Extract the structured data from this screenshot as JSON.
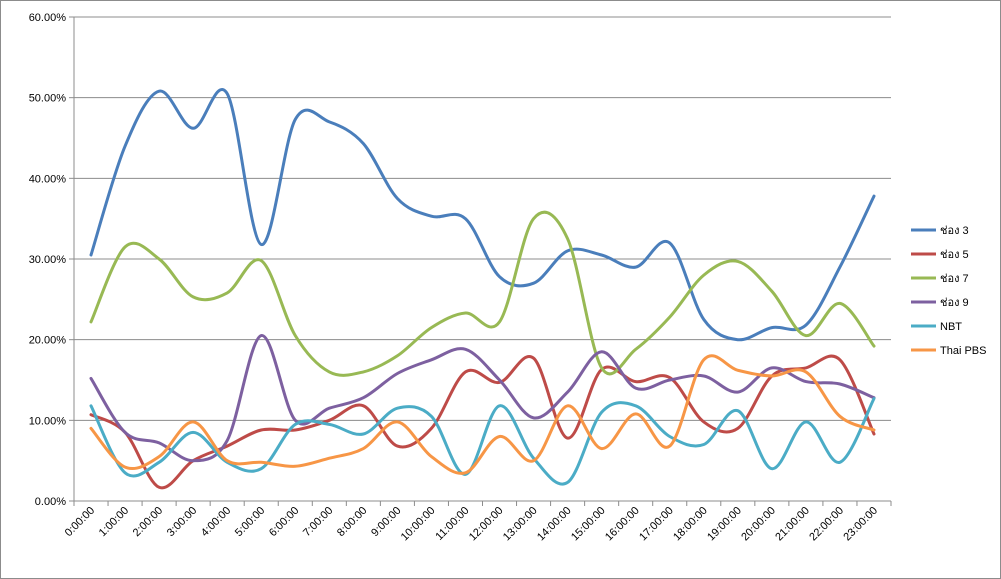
{
  "chart_data": {
    "type": "line",
    "title": "",
    "xlabel": "",
    "ylabel": "",
    "ylim": [
      0,
      60
    ],
    "y_ticks": [
      "0.00%",
      "10.00%",
      "20.00%",
      "30.00%",
      "40.00%",
      "50.00%",
      "60.00%"
    ],
    "grid": true,
    "smooth": true,
    "legend_position": "right",
    "categories": [
      "0:00:00",
      "1:00:00",
      "2:00:00",
      "3:00:00",
      "4:00:00",
      "5:00:00",
      "6:00:00",
      "7:00:00",
      "8:00:00",
      "9:00:00",
      "10:00:00",
      "11:00:00",
      "12:00:00",
      "13:00:00",
      "14:00:00",
      "15:00:00",
      "16:00:00",
      "17:00:00",
      "18:00:00",
      "19:00:00",
      "20:00:00",
      "21:00:00",
      "22:00:00",
      "23:00:00"
    ],
    "series": [
      {
        "name": "ช่อง 3",
        "color": "#4a7ebb",
        "values": [
          30.5,
          44.0,
          50.8,
          46.2,
          50.5,
          31.8,
          47.3,
          47.0,
          44.3,
          37.5,
          35.3,
          35.0,
          27.8,
          27.0,
          31.0,
          30.5,
          29.0,
          32.0,
          22.5,
          20.0,
          21.5,
          21.8,
          29.0,
          37.8
        ]
      },
      {
        "name": "ช่อง 5",
        "color": "#be4b48",
        "values": [
          10.7,
          8.5,
          1.7,
          5.0,
          6.8,
          8.8,
          8.8,
          10.0,
          11.8,
          6.8,
          9.0,
          16.0,
          14.7,
          17.7,
          7.8,
          16.3,
          14.8,
          15.3,
          9.8,
          9.0,
          15.5,
          16.5,
          17.5,
          8.3
        ]
      },
      {
        "name": "ช่อง 7",
        "color": "#98b954",
        "values": [
          22.2,
          31.5,
          30.0,
          25.3,
          25.8,
          29.8,
          20.5,
          16.0,
          16.0,
          18.0,
          21.5,
          23.3,
          22.2,
          35.0,
          32.5,
          16.5,
          18.8,
          22.8,
          28.0,
          29.7,
          26.0,
          20.5,
          24.5,
          19.2
        ]
      },
      {
        "name": "ช่อง 9",
        "color": "#7d60a0",
        "values": [
          15.2,
          8.5,
          7.2,
          5.0,
          7.5,
          20.5,
          10.0,
          11.5,
          12.8,
          15.8,
          17.5,
          18.8,
          15.0,
          10.3,
          13.5,
          18.5,
          14.0,
          15.0,
          15.5,
          13.5,
          16.5,
          14.8,
          14.5,
          12.8
        ]
      },
      {
        "name": "NBT",
        "color": "#4bacc6",
        "values": [
          11.8,
          3.5,
          4.8,
          8.5,
          4.8,
          4.0,
          9.5,
          9.5,
          8.3,
          11.5,
          10.5,
          3.3,
          11.8,
          5.3,
          2.3,
          11.0,
          11.8,
          8.0,
          7.0,
          11.2,
          4.0,
          9.8,
          4.8,
          12.7
        ]
      },
      {
        "name": "Thai PBS",
        "color": "#f79646",
        "values": [
          9.0,
          4.2,
          5.5,
          9.8,
          5.0,
          4.8,
          4.3,
          5.3,
          6.5,
          9.8,
          5.5,
          3.5,
          8.0,
          5.0,
          11.8,
          6.5,
          10.8,
          6.8,
          17.5,
          16.2,
          15.5,
          16.0,
          10.5,
          8.8
        ]
      }
    ]
  }
}
